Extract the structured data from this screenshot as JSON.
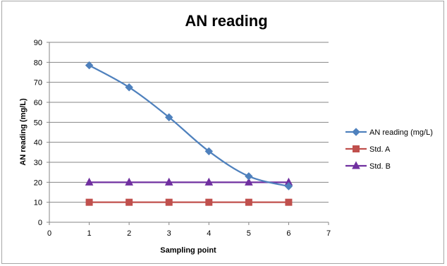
{
  "chart_data": {
    "type": "line",
    "title": "AN reading",
    "xlabel": "Sampling point",
    "ylabel": "AN reading (mg/L)",
    "xlim": [
      0,
      7
    ],
    "ylim": [
      0,
      90
    ],
    "x_ticks": [
      0,
      1,
      2,
      3,
      4,
      5,
      6,
      7
    ],
    "y_ticks": [
      0,
      10,
      20,
      30,
      40,
      50,
      60,
      70,
      80,
      90
    ],
    "grid": "horizontal",
    "legend_position": "right",
    "series": [
      {
        "name": "AN reading (mg/L)",
        "color": "#4f81bd",
        "marker": "diamond",
        "smooth": true,
        "x": [
          1,
          2,
          3,
          4,
          5,
          6
        ],
        "values": [
          78.5,
          67.5,
          52.5,
          35.5,
          23,
          18
        ]
      },
      {
        "name": "Std. A",
        "color": "#c0504d",
        "marker": "square",
        "smooth": false,
        "x": [
          1,
          2,
          3,
          4,
          5,
          6
        ],
        "values": [
          10,
          10,
          10,
          10,
          10,
          10
        ]
      },
      {
        "name": "Std. B",
        "color": "#7030a0",
        "marker": "triangle",
        "smooth": false,
        "x": [
          1,
          2,
          3,
          4,
          5,
          6
        ],
        "values": [
          20,
          20,
          20,
          20,
          20,
          20
        ]
      }
    ]
  }
}
